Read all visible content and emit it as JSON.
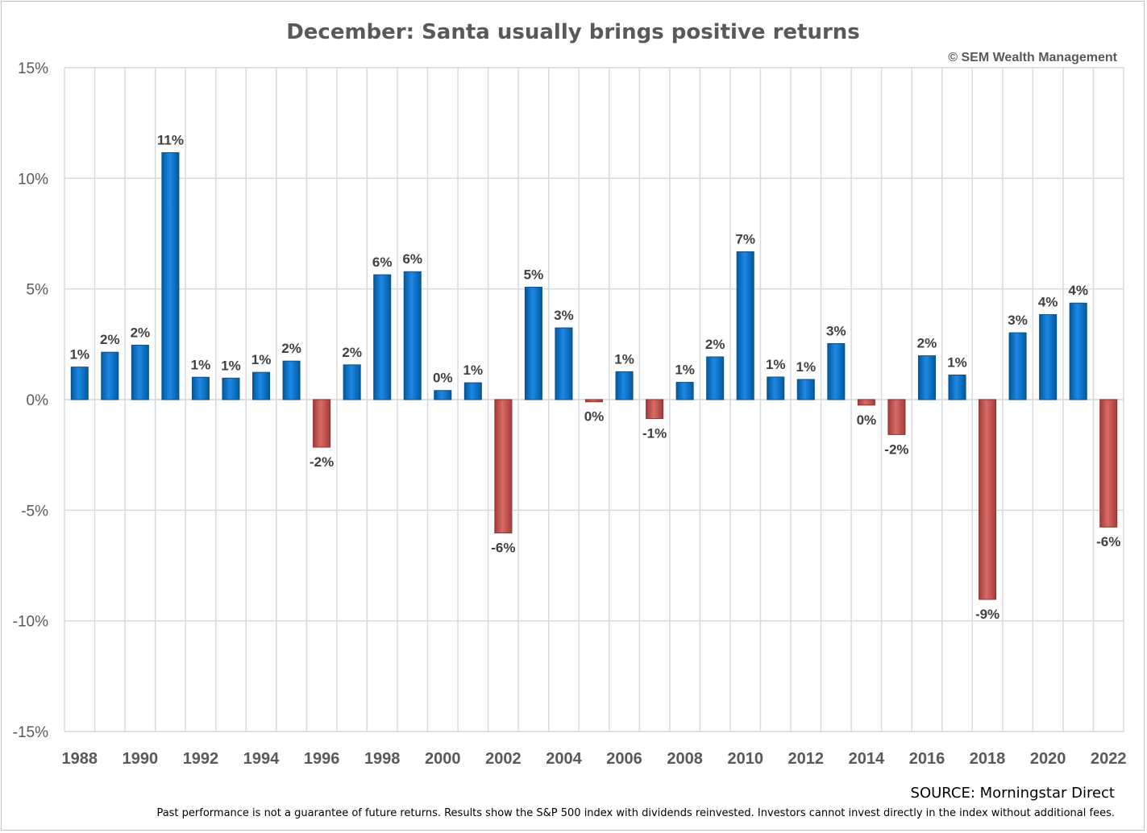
{
  "chart_data": {
    "type": "bar",
    "title": "December: Santa usually brings positive returns",
    "copyright": "© SEM Wealth Management",
    "source": "SOURCE: Morningstar Direct",
    "disclaimer": "Past performance is not a guarantee of future returns. Results show the S&P 500 index with dividends reinvested. Investors cannot invest directly in the index without additional fees.",
    "ylim": [
      -15,
      15
    ],
    "yticks": [
      15,
      10,
      5,
      0,
      -5,
      -10,
      -15
    ],
    "ytick_labels": [
      "15%",
      "10%",
      "5%",
      "0%",
      "-5%",
      "-10%",
      "-15%"
    ],
    "grid": true,
    "colors": {
      "positive": "#0070c0",
      "negative": "#c0504d",
      "grid": "#d9d9d9"
    },
    "categories": [
      "1988",
      "1989",
      "1990",
      "1991",
      "1992",
      "1993",
      "1994",
      "1995",
      "1996",
      "1997",
      "1998",
      "1999",
      "2000",
      "2001",
      "2002",
      "2003",
      "2004",
      "2005",
      "2006",
      "2007",
      "2008",
      "2009",
      "2010",
      "2011",
      "2012",
      "2013",
      "2014",
      "2015",
      "2016",
      "2017",
      "2018",
      "2019",
      "2020",
      "2021",
      "2022"
    ],
    "xtick_labels": [
      "1988",
      "",
      "1990",
      "",
      "1992",
      "",
      "1994",
      "",
      "1996",
      "",
      "1998",
      "",
      "2000",
      "",
      "2002",
      "",
      "2004",
      "",
      "2006",
      "",
      "2008",
      "",
      "2010",
      "",
      "2012",
      "",
      "2014",
      "",
      "2016",
      "",
      "2018",
      "",
      "2020",
      "",
      "2022"
    ],
    "values": [
      1.47,
      2.14,
      2.46,
      11.16,
      1.01,
      0.97,
      1.23,
      1.74,
      -2.15,
      1.57,
      5.64,
      5.78,
      0.41,
      0.76,
      -6.03,
      5.08,
      3.24,
      -0.1,
      1.26,
      -0.86,
      0.78,
      1.93,
      6.68,
      1.02,
      0.91,
      2.53,
      -0.25,
      -1.58,
      1.98,
      1.11,
      -9.03,
      3.02,
      3.84,
      4.36,
      -5.76
    ],
    "data_labels": [
      "1%",
      "2%",
      "2%",
      "11%",
      "1%",
      "1%",
      "1%",
      "2%",
      "-2%",
      "2%",
      "6%",
      "6%",
      "0%",
      "1%",
      "-6%",
      "5%",
      "3%",
      "0%",
      "1%",
      "-1%",
      "1%",
      "2%",
      "7%",
      "1%",
      "1%",
      "3%",
      "0%",
      "-2%",
      "2%",
      "1%",
      "-9%",
      "3%",
      "4%",
      "4%",
      "-6%"
    ]
  }
}
